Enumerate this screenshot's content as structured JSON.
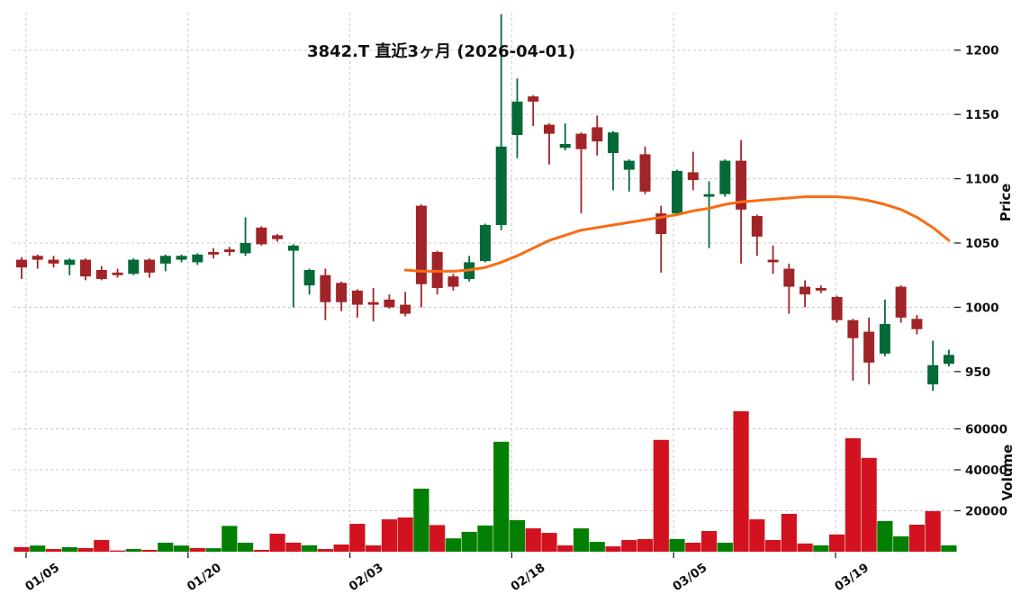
{
  "title": "3842.T 直近3ヶ月 (2026-04-01)",
  "price_axis": {
    "label": "Price",
    "ticks": [
      950,
      1000,
      1050,
      1100,
      1150,
      1200
    ]
  },
  "volume_axis": {
    "label": "Volume",
    "ticks": [
      20000,
      40000,
      60000
    ]
  },
  "x_axis": {
    "tick_labels": [
      "01/05",
      "01/20",
      "02/03",
      "02/18",
      "03/05",
      "03/19"
    ]
  },
  "colors": {
    "candle_up": "#046a38",
    "candle_down": "#a02428",
    "volume_up": "#038003",
    "volume_down": "#d2121e",
    "ma_line": "#f96d13",
    "gridline": "#c9c9c9",
    "tick_text": "#111111",
    "background": "#ffffff"
  },
  "chart_data": {
    "type": "candlestick",
    "title": "3842.T 直近3ヶ月 (2026-04-01)",
    "panes": [
      "price",
      "volume"
    ],
    "legend": "none",
    "grid": "dashed",
    "num_days": 59,
    "price_ylim": [
      935,
      1230
    ],
    "x_tick_labels": [
      "01/05",
      "01/20",
      "02/03",
      "02/18",
      "03/05",
      "03/19"
    ],
    "x_tick_day_indices": [
      0,
      10,
      20,
      31,
      41,
      51
    ],
    "ohlc": [
      [
        1037,
        1039,
        1022,
        1031
      ],
      [
        1040,
        1041,
        1030,
        1037
      ],
      [
        1037,
        1040,
        1031,
        1034
      ],
      [
        1033,
        1038,
        1025,
        1037
      ],
      [
        1037,
        1038,
        1021,
        1024
      ],
      [
        1029,
        1032,
        1021,
        1022
      ],
      [
        1027,
        1030,
        1023,
        1025
      ],
      [
        1026,
        1038,
        1025,
        1037
      ],
      [
        1037,
        1038,
        1023,
        1027
      ],
      [
        1034,
        1041,
        1028,
        1040
      ],
      [
        1037,
        1041,
        1035,
        1040
      ],
      [
        1035,
        1042,
        1033,
        1041
      ],
      [
        1043,
        1046,
        1038,
        1041
      ],
      [
        1045,
        1047,
        1040,
        1043
      ],
      [
        1042,
        1070,
        1040,
        1050
      ],
      [
        1062,
        1063,
        1048,
        1049
      ],
      [
        1056,
        1057,
        1051,
        1053
      ],
      [
        1044,
        1049,
        1000,
        1048
      ],
      [
        1017,
        1030,
        1010,
        1029
      ],
      [
        1025,
        1030,
        990,
        1004
      ],
      [
        1019,
        1020,
        997,
        1004
      ],
      [
        1013,
        1014,
        992,
        1002
      ],
      [
        1004,
        1015,
        989,
        1002
      ],
      [
        1006,
        1010,
        999,
        1000
      ],
      [
        1002,
        1012,
        993,
        995
      ],
      [
        1079,
        1080,
        1000,
        1018
      ],
      [
        1043,
        1044,
        1010,
        1015
      ],
      [
        1024,
        1026,
        1013,
        1016
      ],
      [
        1022,
        1040,
        1020,
        1035
      ],
      [
        1036,
        1065,
        1035,
        1064
      ],
      [
        1064,
        1228,
        1060,
        1125
      ],
      [
        1134,
        1178,
        1116,
        1160
      ],
      [
        1164,
        1165,
        1141,
        1160
      ],
      [
        1142,
        1143,
        1111,
        1135
      ],
      [
        1124,
        1143,
        1122,
        1127
      ],
      [
        1135,
        1136,
        1073,
        1123
      ],
      [
        1140,
        1149,
        1118,
        1129
      ],
      [
        1120,
        1137,
        1091,
        1136
      ],
      [
        1107,
        1115,
        1090,
        1114
      ],
      [
        1119,
        1125,
        1088,
        1090
      ],
      [
        1073,
        1079,
        1027,
        1057
      ],
      [
        1073,
        1107,
        1071,
        1106
      ],
      [
        1105,
        1121,
        1091,
        1099
      ],
      [
        1086,
        1098,
        1046,
        1088
      ],
      [
        1088,
        1115,
        1086,
        1114
      ],
      [
        1114,
        1130,
        1034,
        1076
      ],
      [
        1071,
        1072,
        1040,
        1055
      ],
      [
        1037,
        1048,
        1026,
        1035
      ],
      [
        1030,
        1034,
        995,
        1016
      ],
      [
        1016,
        1021,
        1000,
        1010
      ],
      [
        1015,
        1017,
        1011,
        1013
      ],
      [
        1008,
        1009,
        988,
        990
      ],
      [
        990,
        991,
        943,
        976
      ],
      [
        981,
        992,
        940,
        957
      ],
      [
        964,
        1006,
        962,
        987
      ],
      [
        1016,
        1017,
        988,
        992
      ],
      [
        991,
        994,
        979,
        983
      ],
      [
        940,
        974,
        935,
        955
      ],
      [
        956,
        967,
        954,
        963
      ]
    ],
    "volume": [
      2200,
      3000,
      1300,
      2200,
      1800,
      5700,
      600,
      1300,
      900,
      4400,
      3000,
      1800,
      1700,
      12600,
      4400,
      900,
      8800,
      4400,
      3100,
      1300,
      3500,
      13600,
      3100,
      15800,
      16700,
      30800,
      13000,
      6500,
      9700,
      12800,
      53700,
      15400,
      11400,
      9200,
      3100,
      11400,
      4800,
      2600,
      5700,
      6200,
      54600,
      6200,
      4400,
      10100,
      4400,
      68600,
      15800,
      5700,
      18500,
      4000,
      3100,
      8400,
      55400,
      45800,
      15000,
      7500,
      13200,
      19800,
      3100
    ],
    "volume_up": [
      false,
      true,
      false,
      true,
      false,
      false,
      false,
      true,
      false,
      true,
      true,
      false,
      true,
      true,
      true,
      false,
      false,
      false,
      true,
      false,
      false,
      false,
      false,
      false,
      false,
      true,
      false,
      true,
      true,
      true,
      true,
      true,
      false,
      false,
      false,
      true,
      true,
      false,
      false,
      false,
      false,
      true,
      false,
      false,
      true,
      false,
      false,
      false,
      false,
      false,
      true,
      false,
      false,
      false,
      true,
      true,
      false,
      false,
      true
    ],
    "ma_name": "moving-average",
    "ma_start_index": 24,
    "ma": [
      1029,
      1028,
      1028,
      1028,
      1029,
      1031,
      1035,
      1040,
      1046,
      1052,
      1056,
      1060,
      1062,
      1064,
      1066,
      1068,
      1070,
      1072,
      1075,
      1077,
      1080,
      1082,
      1083,
      1084,
      1085,
      1086,
      1086,
      1086,
      1085,
      1083,
      1080,
      1076,
      1070,
      1062,
      1052
    ]
  }
}
